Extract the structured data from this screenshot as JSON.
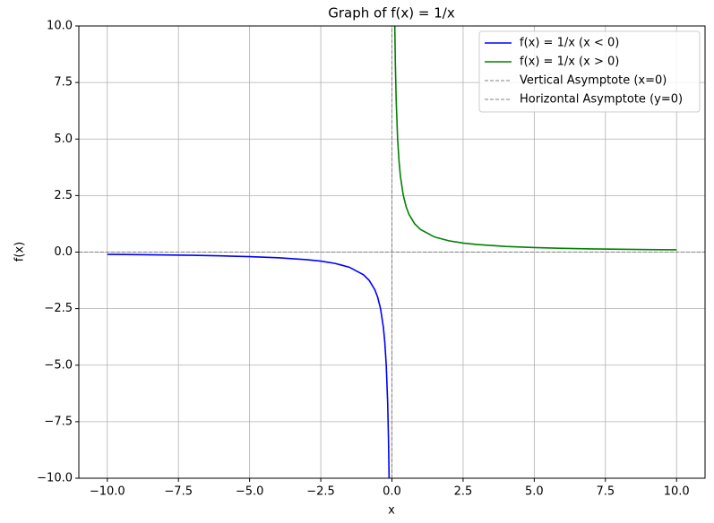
{
  "chart_data": {
    "type": "line",
    "title": "Graph of f(x) = 1/x",
    "x_label": "x",
    "y_label": "f(x)",
    "xlim": [
      -11,
      11
    ],
    "ylim": [
      -10,
      10
    ],
    "grid": true,
    "legend": "upper right",
    "xticks": [
      {
        "value": -10,
        "label": "−10.0"
      },
      {
        "value": -7.5,
        "label": "−7.5"
      },
      {
        "value": -5,
        "label": "−5.0"
      },
      {
        "value": -2.5,
        "label": "−2.5"
      },
      {
        "value": 0,
        "label": "0.0"
      },
      {
        "value": 2.5,
        "label": "2.5"
      },
      {
        "value": 5,
        "label": "5.0"
      },
      {
        "value": 7.5,
        "label": "7.5"
      },
      {
        "value": 10,
        "label": "10.0"
      }
    ],
    "yticks": [
      {
        "value": -10,
        "label": "−10.0"
      },
      {
        "value": -7.5,
        "label": "−7.5"
      },
      {
        "value": -5,
        "label": "−5.0"
      },
      {
        "value": -2.5,
        "label": "−2.5"
      },
      {
        "value": 0,
        "label": "0.0"
      },
      {
        "value": 2.5,
        "label": "2.5"
      },
      {
        "value": 5,
        "label": "5.0"
      },
      {
        "value": 7.5,
        "label": "7.5"
      },
      {
        "value": 10,
        "label": "10.0"
      }
    ],
    "series": [
      {
        "name": "f(x) = 1/x (x < 0)",
        "color": "#0000ff",
        "style": "solid",
        "x": [
          -10,
          -9,
          -8,
          -7,
          -6,
          -5,
          -4,
          -3,
          -2.5,
          -2,
          -1.5,
          -1,
          -0.8,
          -0.6,
          -0.5,
          -0.4,
          -0.3,
          -0.25,
          -0.2,
          -0.15,
          -0.12,
          -0.1
        ],
        "values": [
          -0.1,
          -0.111,
          -0.125,
          -0.143,
          -0.167,
          -0.2,
          -0.25,
          -0.333,
          -0.4,
          -0.5,
          -0.667,
          -1,
          -1.25,
          -1.667,
          -2,
          -2.5,
          -3.333,
          -4,
          -5,
          -6.667,
          -8.333,
          -10
        ]
      },
      {
        "name": "f(x) = 1/x (x > 0)",
        "color": "#008000",
        "style": "solid",
        "x": [
          0.1,
          0.12,
          0.15,
          0.2,
          0.25,
          0.3,
          0.4,
          0.5,
          0.6,
          0.8,
          1,
          1.5,
          2,
          2.5,
          3,
          4,
          5,
          6,
          7,
          8,
          9,
          10
        ],
        "values": [
          10,
          8.333,
          6.667,
          5,
          4,
          3.333,
          2.5,
          2,
          1.667,
          1.25,
          1,
          0.667,
          0.5,
          0.4,
          0.333,
          0.25,
          0.2,
          0.167,
          0.143,
          0.125,
          0.111,
          0.1
        ]
      },
      {
        "name": "Vertical Asymptote (x=0)",
        "color": "#808080",
        "style": "dashed",
        "x": [
          0,
          0
        ],
        "values": [
          -10,
          10
        ]
      },
      {
        "name": "Horizontal Asymptote (y=0)",
        "color": "#808080",
        "style": "dashed",
        "x": [
          -11,
          11
        ],
        "values": [
          0,
          0
        ]
      }
    ]
  }
}
